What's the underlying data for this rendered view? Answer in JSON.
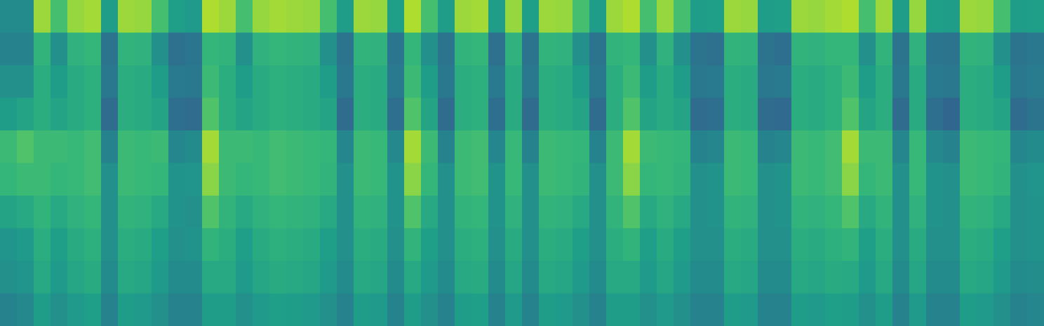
{
  "chart_data": {
    "type": "heatmap",
    "tick_labels": false,
    "color_range": [
      0,
      100
    ],
    "cells": [
      [
        48,
        48,
        85,
        70,
        84,
        86,
        55,
        85,
        84,
        70,
        56,
        54,
        88,
        85,
        70,
        84,
        86,
        85,
        84,
        70,
        55,
        85,
        84,
        56,
        88,
        70,
        55,
        85,
        86,
        55,
        84,
        56,
        85,
        84,
        70,
        55,
        85,
        88,
        70,
        84,
        70,
        55,
        56,
        85,
        84,
        55,
        56,
        85,
        84,
        86,
        88,
        70,
        85,
        55,
        84,
        56,
        55,
        85,
        84,
        70,
        55,
        56
      ],
      [
        45,
        45,
        65,
        50,
        64,
        66,
        38,
        65,
        64,
        50,
        37,
        39,
        66,
        65,
        50,
        64,
        66,
        65,
        64,
        50,
        38,
        65,
        64,
        39,
        66,
        50,
        38,
        65,
        66,
        37,
        64,
        38,
        65,
        64,
        50,
        38,
        65,
        66,
        50,
        64,
        50,
        38,
        37,
        65,
        64,
        38,
        36,
        65,
        64,
        66,
        66,
        50,
        65,
        38,
        64,
        39,
        38,
        65,
        64,
        50,
        38,
        40
      ],
      [
        50,
        50,
        62,
        55,
        61,
        63,
        40,
        62,
        61,
        55,
        41,
        40,
        68,
        62,
        55,
        61,
        63,
        62,
        61,
        55,
        40,
        62,
        61,
        41,
        68,
        55,
        40,
        62,
        63,
        41,
        61,
        40,
        62,
        61,
        55,
        40,
        62,
        68,
        55,
        61,
        55,
        40,
        41,
        62,
        61,
        40,
        41,
        62,
        61,
        63,
        68,
        55,
        62,
        40,
        61,
        41,
        40,
        62,
        61,
        55,
        40,
        42
      ],
      [
        55,
        58,
        62,
        58,
        61,
        63,
        35,
        62,
        61,
        58,
        36,
        35,
        72,
        62,
        58,
        61,
        63,
        62,
        61,
        58,
        35,
        62,
        61,
        36,
        72,
        58,
        35,
        62,
        63,
        36,
        61,
        35,
        62,
        61,
        58,
        35,
        62,
        72,
        58,
        61,
        58,
        35,
        36,
        62,
        61,
        35,
        34,
        62,
        61,
        63,
        72,
        58,
        62,
        35,
        61,
        36,
        33,
        62,
        61,
        58,
        35,
        38
      ],
      [
        68,
        72,
        68,
        68,
        67,
        69,
        45,
        68,
        67,
        68,
        46,
        48,
        86,
        68,
        68,
        67,
        69,
        68,
        67,
        66,
        46,
        68,
        67,
        47,
        86,
        68,
        45,
        68,
        69,
        46,
        67,
        45,
        68,
        67,
        66,
        45,
        68,
        86,
        68,
        67,
        66,
        45,
        46,
        68,
        67,
        45,
        46,
        68,
        67,
        69,
        86,
        68,
        68,
        46,
        67,
        47,
        45,
        68,
        67,
        66,
        46,
        48
      ],
      [
        66,
        68,
        68,
        66,
        67,
        69,
        50,
        68,
        67,
        66,
        51,
        52,
        82,
        68,
        66,
        67,
        69,
        68,
        67,
        65,
        50,
        68,
        67,
        51,
        82,
        66,
        50,
        68,
        69,
        51,
        67,
        50,
        68,
        67,
        65,
        50,
        68,
        82,
        66,
        67,
        65,
        50,
        51,
        68,
        67,
        50,
        51,
        68,
        67,
        69,
        82,
        66,
        68,
        50,
        67,
        51,
        50,
        68,
        67,
        65,
        50,
        52
      ],
      [
        58,
        60,
        65,
        60,
        64,
        66,
        50,
        65,
        64,
        60,
        51,
        50,
        72,
        65,
        60,
        64,
        66,
        65,
        64,
        60,
        50,
        65,
        64,
        51,
        72,
        60,
        50,
        65,
        66,
        51,
        64,
        50,
        65,
        64,
        60,
        50,
        65,
        72,
        60,
        64,
        60,
        50,
        51,
        65,
        64,
        50,
        51,
        65,
        64,
        66,
        72,
        60,
        65,
        50,
        64,
        51,
        50,
        65,
        64,
        60,
        50,
        51
      ],
      [
        52,
        54,
        62,
        56,
        61,
        63,
        50,
        62,
        61,
        56,
        50,
        51,
        65,
        62,
        56,
        61,
        63,
        62,
        61,
        56,
        50,
        62,
        61,
        50,
        65,
        56,
        50,
        62,
        63,
        50,
        61,
        50,
        62,
        61,
        56,
        50,
        62,
        65,
        56,
        61,
        56,
        50,
        50,
        62,
        61,
        50,
        50,
        62,
        61,
        63,
        65,
        56,
        62,
        50,
        61,
        50,
        50,
        62,
        61,
        56,
        50,
        51
      ],
      [
        50,
        52,
        60,
        54,
        59,
        61,
        48,
        60,
        59,
        54,
        48,
        48,
        60,
        60,
        54,
        59,
        61,
        60,
        59,
        54,
        48,
        60,
        59,
        48,
        60,
        54,
        48,
        60,
        61,
        48,
        59,
        48,
        60,
        59,
        54,
        48,
        60,
        60,
        54,
        59,
        54,
        48,
        48,
        60,
        59,
        48,
        48,
        60,
        59,
        61,
        60,
        54,
        60,
        48,
        59,
        48,
        48,
        60,
        59,
        54,
        48,
        49
      ],
      [
        45,
        47,
        55,
        50,
        54,
        56,
        45,
        55,
        54,
        50,
        45,
        45,
        55,
        55,
        50,
        54,
        56,
        55,
        54,
        50,
        45,
        55,
        54,
        45,
        55,
        50,
        45,
        55,
        56,
        45,
        54,
        45,
        55,
        54,
        50,
        45,
        55,
        55,
        50,
        54,
        50,
        45,
        45,
        55,
        54,
        45,
        45,
        55,
        54,
        56,
        55,
        50,
        55,
        45,
        54,
        45,
        45,
        55,
        54,
        50,
        45,
        46
      ]
    ]
  }
}
